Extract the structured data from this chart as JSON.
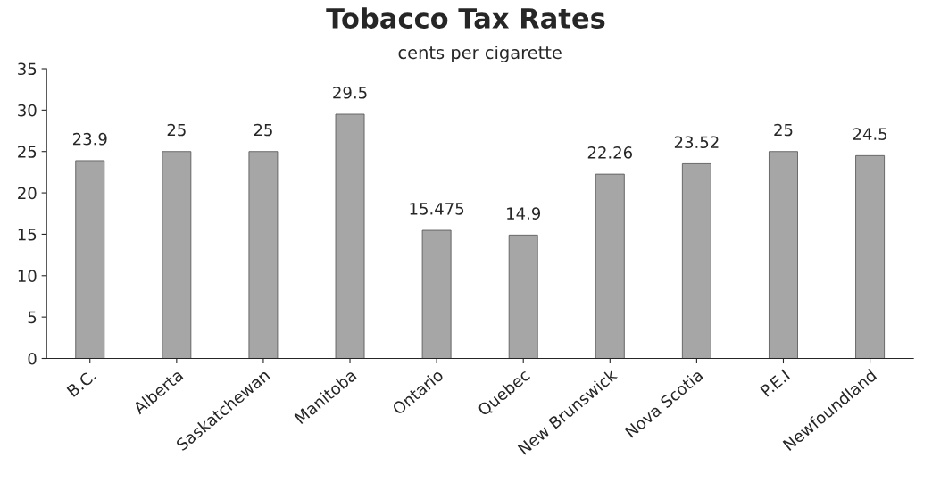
{
  "chart_data": {
    "type": "bar",
    "title": "Tobacco Tax Rates",
    "subtitle": "cents per cigarette",
    "categories": [
      "B.C.",
      "Alberta",
      "Saskatchewan",
      "Manitoba",
      "Ontario",
      "Quebec",
      "New Brunswick",
      "Nova Scotia",
      "P.E.I",
      "Newfoundland"
    ],
    "values": [
      23.9,
      25,
      25,
      29.5,
      15.475,
      14.9,
      22.26,
      23.52,
      25,
      24.5
    ],
    "color": "#a6a6a6",
    "ylim": [
      0,
      35
    ],
    "yticks": [
      0,
      5,
      10,
      15,
      20,
      25,
      30,
      35
    ],
    "grid": false,
    "data_labels": true
  }
}
